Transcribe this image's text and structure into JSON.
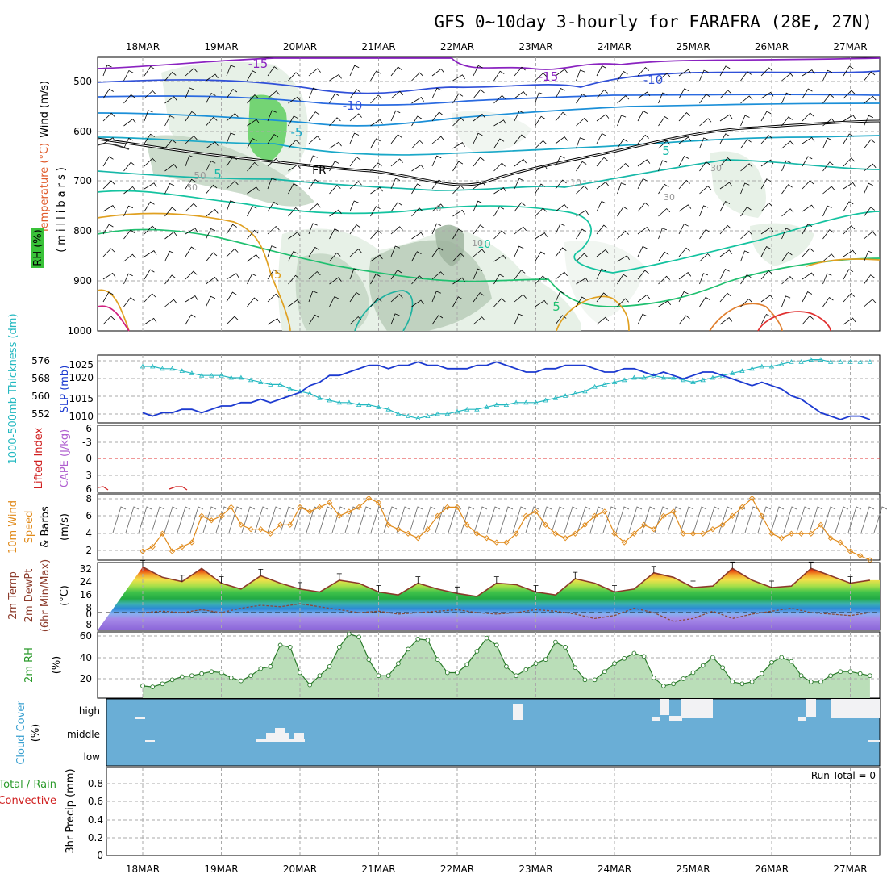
{
  "title": "GFS 0~10day 3-hourly for FARAFRA (28E, 27N)",
  "dates": [
    "18MAR",
    "19MAR",
    "20MAR",
    "21MAR",
    "22MAR",
    "23MAR",
    "24MAR",
    "25MAR",
    "26MAR",
    "27MAR"
  ],
  "colors": {
    "grid": "#aaaaaa",
    "slp": "#1c3ad0",
    "thickness": "#22b8c0",
    "wind": "#e08a1a",
    "temp_line": "#8b3a2a",
    "rh": "#2a9a2a",
    "cloud": "#6aaed6",
    "lifted": "#d02020",
    "cape": "#b060d0"
  },
  "panels": {
    "upper": {
      "ylabel_wind": "Wind (m/s)",
      "ylabel_temp": "Temperature (°C)",
      "ylabel_rh": "RH (%)",
      "ylabel_p": "(millibars)",
      "yticks": [
        "500",
        "600",
        "700",
        "800",
        "900",
        "1000"
      ],
      "contour_labels": [
        "-15",
        "-15",
        "-10",
        "-10",
        "-5",
        "5",
        "5",
        "FR",
        "-5",
        "5",
        "-10",
        "0",
        "50",
        "30",
        "10",
        "30",
        "10",
        "30"
      ]
    },
    "slp": {
      "ylabel_thick": "1000-500mb Thickness (dm)",
      "ylabel_slp": "SLP (mb)",
      "yticks_left": [
        "576",
        "568",
        "560",
        "552"
      ],
      "yticks_right": [
        "1025",
        "1020",
        "1015",
        "1010"
      ]
    },
    "li": {
      "ylabel_li": "Lifted Index",
      "ylabel_cape": "CAPE (J/kg)",
      "yticks": [
        "-6",
        "-3",
        "0",
        "3",
        "6"
      ]
    },
    "wind10": {
      "ylabel_a": "10m Wind",
      "ylabel_b": "Speed",
      "ylabel_c": "& Barbs",
      "ylabel_unit": "(m/s)",
      "yticks": [
        "8",
        "6",
        "4",
        "2"
      ]
    },
    "temp2m": {
      "ylabel_a": "2m Temp",
      "ylabel_b": "2m DewPt",
      "ylabel_c": "(6hr Min/Max)",
      "ylabel_unit": "(°C)",
      "yticks": [
        "32",
        "24",
        "16",
        "8",
        "0",
        "-8"
      ]
    },
    "rh2m": {
      "ylabel": "2m RH",
      "ylabel_unit": "(%)",
      "yticks": [
        "60",
        "40",
        "20"
      ]
    },
    "cloud": {
      "ylabel": "Cloud Cover",
      "ylabel_unit": "(%)",
      "levels": [
        "high",
        "middle",
        "low"
      ]
    },
    "precip": {
      "ylabel_a": "Total / Rain",
      "ylabel_b": "Convective",
      "ylabel_c": "3hr Precip (mm)",
      "yticks": [
        "0.8",
        "0.6",
        "0.4",
        "0.2",
        "0"
      ],
      "run_total": "Run Total = 0"
    }
  },
  "chart_data": [
    {
      "type": "line",
      "name": "SLP",
      "x_unit": "day index from 18MAR 00Z (3-hourly)",
      "x": [
        0,
        0.125,
        0.25,
        0.375,
        0.5,
        0.625,
        0.75,
        0.875,
        1,
        1.125,
        1.25,
        1.375,
        1.5,
        1.625,
        1.75,
        1.875,
        2,
        2.125,
        2.25,
        2.375,
        2.5,
        2.625,
        2.75,
        2.875,
        3,
        3.125,
        3.25,
        3.375,
        3.5,
        3.625,
        3.75,
        3.875,
        4,
        4.125,
        4.25,
        4.375,
        4.5,
        4.625,
        4.75,
        4.875,
        5,
        5.125,
        5.25,
        5.375,
        5.5,
        5.625,
        5.75,
        5.875,
        6,
        6.125,
        6.25,
        6.375,
        6.5,
        6.625,
        6.75,
        6.875,
        7,
        7.125,
        7.25,
        7.375,
        7.5,
        7.625,
        7.75,
        7.875,
        8,
        8.125,
        8.25,
        8.375,
        8.5,
        8.625,
        8.75,
        8.875,
        9,
        9.125,
        9.25
      ],
      "values": [
        1011,
        1010,
        1011,
        1011,
        1012,
        1012,
        1011,
        1012,
        1013,
        1013,
        1014,
        1014,
        1015,
        1014,
        1015,
        1016,
        1017,
        1019,
        1020,
        1022,
        1022,
        1023,
        1024,
        1025,
        1025,
        1024,
        1025,
        1025,
        1026,
        1025,
        1025,
        1024,
        1024,
        1024,
        1025,
        1025,
        1026,
        1025,
        1024,
        1023,
        1023,
        1024,
        1024,
        1025,
        1025,
        1025,
        1024,
        1023,
        1023,
        1024,
        1024,
        1023,
        1022,
        1023,
        1022,
        1021,
        1022,
        1023,
        1023,
        1022,
        1021,
        1020,
        1019,
        1020,
        1019,
        1018,
        1016,
        1015,
        1013,
        1011,
        1010,
        1009,
        1010,
        1010,
        1009
      ],
      "ylim": [
        1008,
        1028
      ]
    },
    {
      "type": "line",
      "name": "1000-500mb Thickness",
      "x": [
        0,
        0.125,
        0.25,
        0.375,
        0.5,
        0.625,
        0.75,
        0.875,
        1,
        1.125,
        1.25,
        1.375,
        1.5,
        1.625,
        1.75,
        1.875,
        2,
        2.125,
        2.25,
        2.375,
        2.5,
        2.625,
        2.75,
        2.875,
        3,
        3.125,
        3.25,
        3.375,
        3.5,
        3.625,
        3.75,
        3.875,
        4,
        4.125,
        4.25,
        4.375,
        4.5,
        4.625,
        4.75,
        4.875,
        5,
        5.125,
        5.25,
        5.375,
        5.5,
        5.625,
        5.75,
        5.875,
        6,
        6.125,
        6.25,
        6.375,
        6.5,
        6.625,
        6.75,
        6.875,
        7,
        7.125,
        7.25,
        7.375,
        7.5,
        7.625,
        7.75,
        7.875,
        8,
        8.125,
        8.25,
        8.375,
        8.5,
        8.625,
        8.75,
        8.875,
        9,
        9.125,
        9.25
      ],
      "values": [
        573,
        573,
        572,
        572,
        571,
        570,
        569,
        569,
        569,
        568,
        568,
        567,
        566,
        565,
        565,
        563,
        562,
        561,
        559,
        558,
        557,
        557,
        556,
        556,
        555,
        554,
        552,
        551,
        550,
        551,
        552,
        552,
        553,
        554,
        554,
        555,
        556,
        556,
        557,
        557,
        557,
        558,
        559,
        560,
        561,
        562,
        564,
        565,
        566,
        567,
        568,
        568,
        569,
        568,
        568,
        567,
        566,
        567,
        568,
        569,
        570,
        571,
        572,
        573,
        573,
        574,
        575,
        575,
        576,
        576,
        575,
        575,
        575,
        575,
        575
      ],
      "ylim": [
        548,
        578
      ]
    },
    {
      "type": "line",
      "name": "10m Wind Speed",
      "x": [
        0,
        0.125,
        0.25,
        0.375,
        0.5,
        0.625,
        0.75,
        0.875,
        1,
        1.125,
        1.25,
        1.375,
        1.5,
        1.625,
        1.75,
        1.875,
        2,
        2.125,
        2.25,
        2.375,
        2.5,
        2.625,
        2.75,
        2.875,
        3,
        3.125,
        3.25,
        3.375,
        3.5,
        3.625,
        3.75,
        3.875,
        4,
        4.125,
        4.25,
        4.375,
        4.5,
        4.625,
        4.75,
        4.875,
        5,
        5.125,
        5.25,
        5.375,
        5.5,
        5.625,
        5.75,
        5.875,
        6,
        6.125,
        6.25,
        6.375,
        6.5,
        6.625,
        6.75,
        6.875,
        7,
        7.125,
        7.25,
        7.375,
        7.5,
        7.625,
        7.75,
        7.875,
        8,
        8.125,
        8.25,
        8.375,
        8.5,
        8.625,
        8.75,
        8.875,
        9,
        9.125,
        9.25
      ],
      "values": [
        2,
        2.5,
        4,
        2,
        2.5,
        3,
        6,
        5.5,
        6,
        7,
        5,
        4.5,
        4.5,
        4,
        5,
        5,
        7,
        6.5,
        7,
        7.5,
        6,
        6.5,
        7,
        8,
        7.5,
        5,
        4.5,
        4,
        3.5,
        4.5,
        6,
        7,
        7,
        5,
        4,
        3.5,
        3,
        3,
        4,
        6,
        6.5,
        5,
        4,
        3.5,
        4,
        5,
        6,
        6.5,
        4,
        3,
        4,
        5,
        4.5,
        6,
        6.5,
        4,
        4,
        4,
        4.5,
        5,
        6,
        7,
        8,
        6,
        4,
        3.5,
        4,
        4,
        4,
        5,
        3.5,
        3,
        2,
        1.5,
        1
      ],
      "ylim": [
        1,
        8.5
      ]
    },
    {
      "type": "area",
      "name": "2m Temp",
      "x": [
        0,
        0.25,
        0.5,
        0.75,
        1,
        1.25,
        1.5,
        1.75,
        2,
        2.25,
        2.5,
        2.75,
        3,
        3.25,
        3.5,
        3.75,
        4,
        4.25,
        4.5,
        4.75,
        5,
        5.25,
        5.5,
        5.75,
        6,
        6.25,
        6.5,
        6.75,
        7,
        7.25,
        7.5,
        7.75,
        8,
        8.25,
        8.5,
        8.75,
        9,
        9.25
      ],
      "values": [
        31,
        24,
        21,
        30,
        20,
        16,
        25,
        20,
        16,
        14,
        22,
        20,
        14,
        12,
        20,
        16,
        13,
        11,
        20,
        19,
        14,
        12,
        23,
        20,
        14,
        16,
        27,
        24,
        17,
        18,
        30,
        22,
        17,
        18,
        30,
        25,
        20,
        22
      ],
      "ylim": [
        -12,
        34
      ]
    },
    {
      "type": "line",
      "name": "2m DewPt",
      "x": [
        0,
        0.25,
        0.5,
        0.75,
        1,
        1.25,
        1.5,
        1.75,
        2,
        2.25,
        2.5,
        2.75,
        3,
        3.25,
        3.5,
        3.75,
        4,
        4.25,
        4.5,
        4.75,
        5,
        5.25,
        5.5,
        5.75,
        6,
        6.25,
        6.5,
        6.75,
        7,
        7.25,
        7.5,
        7.75,
        8,
        8.25,
        8.5,
        8.75,
        9,
        9.25
      ],
      "values": [
        0,
        1,
        0,
        2,
        0,
        3,
        5,
        4,
        6,
        4,
        2,
        0,
        1,
        -1,
        0,
        1,
        2,
        0,
        -1,
        0,
        2,
        1,
        -1,
        -4,
        -2,
        3,
        0,
        -6,
        -4,
        1,
        -4,
        -1,
        1,
        3,
        0,
        -1,
        -2,
        0
      ],
      "ylim": [
        -12,
        34
      ]
    },
    {
      "type": "area",
      "name": "2m RH",
      "x": [
        0,
        0.125,
        0.25,
        0.375,
        0.5,
        0.625,
        0.75,
        0.875,
        1,
        1.125,
        1.25,
        1.375,
        1.5,
        1.625,
        1.75,
        1.875,
        2,
        2.125,
        2.25,
        2.375,
        2.5,
        2.625,
        2.75,
        2.875,
        3,
        3.125,
        3.25,
        3.375,
        3.5,
        3.625,
        3.75,
        3.875,
        4,
        4.125,
        4.25,
        4.375,
        4.5,
        4.625,
        4.75,
        4.875,
        5,
        5.125,
        5.25,
        5.375,
        5.5,
        5.625,
        5.75,
        5.875,
        6,
        6.125,
        6.25,
        6.375,
        6.5,
        6.625,
        6.75,
        6.875,
        7,
        7.125,
        7.25,
        7.375,
        7.5,
        7.625,
        7.75,
        7.875,
        8,
        8.125,
        8.25,
        8.375,
        8.5,
        8.625,
        8.75,
        8.875,
        9,
        9.125,
        9.25
      ],
      "values": [
        12,
        11,
        14,
        18,
        21,
        22,
        24,
        26,
        25,
        20,
        17,
        22,
        29,
        31,
        52,
        50,
        25,
        13,
        22,
        31,
        50,
        63,
        60,
        38,
        22,
        22,
        34,
        48,
        58,
        57,
        38,
        25,
        25,
        33,
        46,
        59,
        52,
        31,
        22,
        28,
        34,
        38,
        55,
        50,
        30,
        18,
        18,
        26,
        34,
        39,
        44,
        41,
        20,
        12,
        14,
        19,
        25,
        32,
        40,
        30,
        16,
        14,
        16,
        24,
        35,
        40,
        36,
        22,
        16,
        16,
        22,
        26,
        26,
        24,
        22
      ],
      "ylim": [
        0,
        65
      ]
    },
    {
      "type": "bar",
      "name": "3hr Precip",
      "categories": [],
      "values": [],
      "ylim": [
        0,
        1
      ]
    }
  ]
}
